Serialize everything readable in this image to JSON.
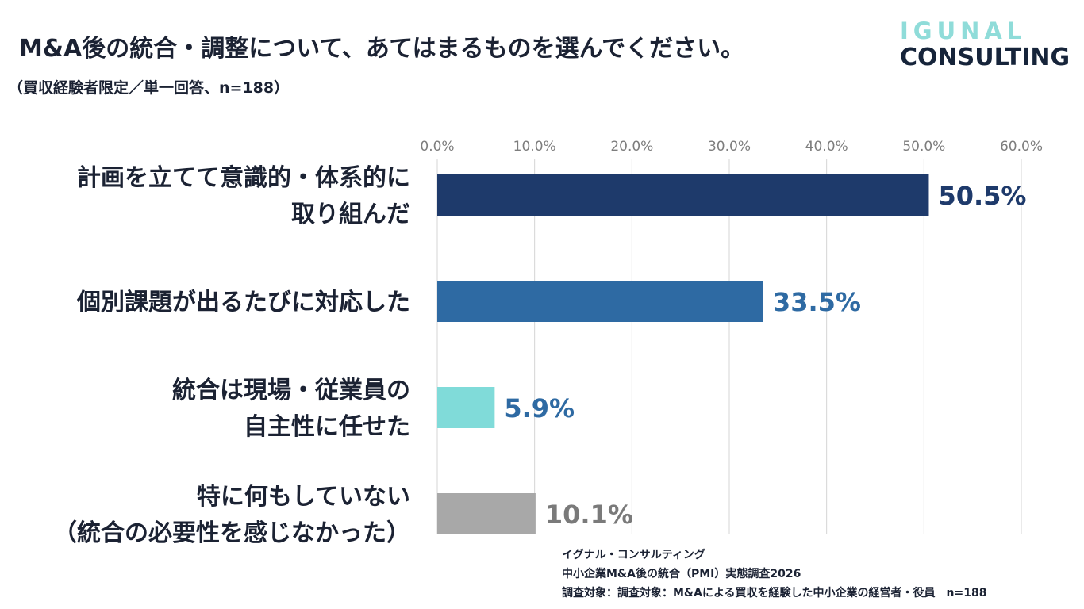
{
  "header": {
    "title": "M&A後の統合・調整について、あてはまるものを選んでください。",
    "subtitle": "（買収経験者限定／単一回答、n=188）"
  },
  "logo": {
    "top": "IGUNAL",
    "bottom": "CONSULTING"
  },
  "chart_data": {
    "type": "bar",
    "orientation": "horizontal",
    "categories": [
      [
        "計画を立てて意識的・体系的に",
        "取り組んだ"
      ],
      [
        "個別課題が出るたびに対応した"
      ],
      [
        "統合は現場・従業員の",
        "自主性に任せた"
      ],
      [
        "特に何もしていない",
        "（統合の必要性を感じなかった）"
      ]
    ],
    "values": [
      50.5,
      33.5,
      5.9,
      10.1
    ],
    "value_labels": [
      "50.5%",
      "33.5%",
      "5.9%",
      "10.1%"
    ],
    "colors": [
      "#1e3a6b",
      "#2e6aa3",
      "#80dbd9",
      "#a8a8a8"
    ],
    "label_colors": [
      "#1e3a6b",
      "#2e6aa3",
      "#2e6aa3",
      "#7a7a7a"
    ],
    "xlim": [
      0,
      60
    ],
    "ticks": [
      "0.0%",
      "10.0%",
      "20.0%",
      "30.0%",
      "40.0%",
      "50.0%",
      "60.0%"
    ],
    "grid": true
  },
  "source": {
    "line1": "イグナル・コンサルティング",
    "line2": "中小企業M&A後の統合（PMI）実態調査2026",
    "line3": "調査対象：調査対象：M&Aによる買収を経験した中小企業の経営者・役員　n=188"
  }
}
